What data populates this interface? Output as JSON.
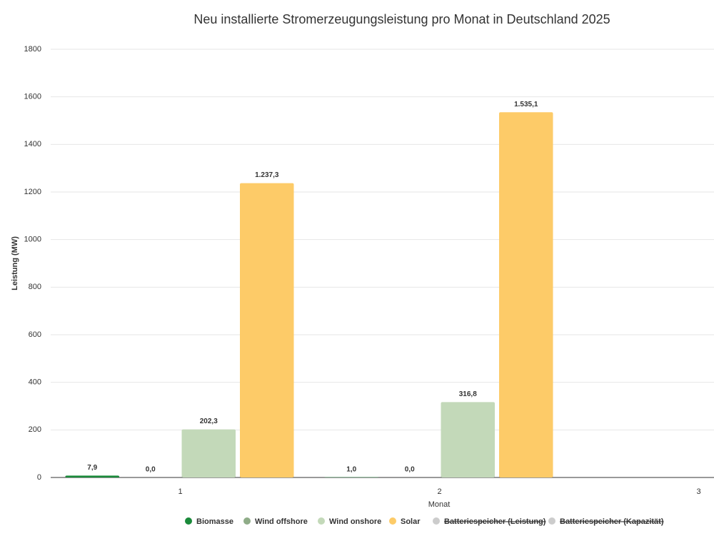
{
  "chart_data": {
    "type": "bar",
    "title": "Neu installierte Stromerzeugungsleistung pro Monat in Deutschland 2025",
    "x_label": "Monat",
    "y_label": "Leistung (MW)",
    "categories": [
      "1",
      "2",
      "3"
    ],
    "series": [
      {
        "name": "Biomasse",
        "color": "#1a8a3a",
        "visible": true,
        "values": [
          7.9,
          1.0,
          null
        ],
        "value_labels": [
          "7,9",
          "1,0",
          null
        ]
      },
      {
        "name": "Wind offshore",
        "color": "#8fac88",
        "visible": true,
        "values": [
          0.0,
          0.0,
          null
        ],
        "value_labels": [
          "0,0",
          "0,0",
          null
        ]
      },
      {
        "name": "Wind onshore",
        "color": "#c3d9b9",
        "visible": true,
        "values": [
          202.3,
          316.8,
          null
        ],
        "value_labels": [
          "202,3",
          "316,8",
          null
        ]
      },
      {
        "name": "Solar",
        "color": "#fdcb68",
        "visible": true,
        "values": [
          1237.3,
          1535.1,
          null
        ],
        "value_labels": [
          "1.237,3",
          "1.535,1",
          null
        ]
      },
      {
        "name": "Batteriespeicher (Leistung)",
        "color": "#cccccc",
        "visible": false,
        "values": [
          null,
          null,
          null
        ]
      },
      {
        "name": "Batteriespeicher (Kapazität)",
        "color": "#cccccc",
        "visible": false,
        "values": [
          null,
          null,
          null
        ]
      }
    ],
    "ylim": [
      0,
      1800
    ],
    "yticks": [
      0,
      200,
      400,
      600,
      800,
      1000,
      1200,
      1400,
      1600,
      1800
    ],
    "grid": true,
    "legend": "bottom"
  }
}
